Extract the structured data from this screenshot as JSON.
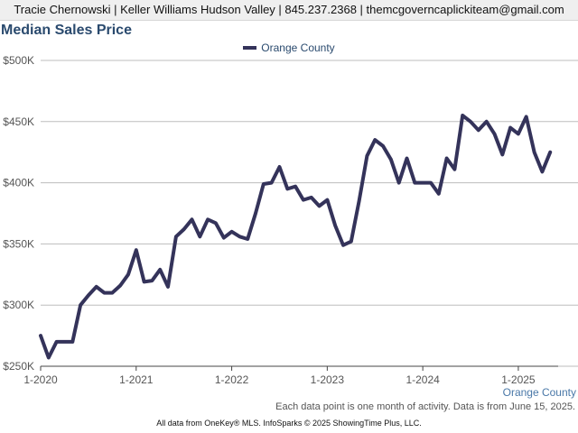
{
  "header": {
    "contact_line": "Tracie Chernowski | Keller Williams Hudson Valley | 845.237.2368 | themcgoverncaplickiteam@gmail.com"
  },
  "footer": {
    "note": "Each data point is one month of activity. Data is from June 15, 2025.",
    "credit": "All data from OneKey® MLS. InfoSparks © 2025 ShowingTime Plus, LLC."
  },
  "colors": {
    "line": "#34335a",
    "grid": "#bdbdbd",
    "title": "#2a4a6e",
    "axis_text": "#555555",
    "corner_label": "#4a78a8"
  },
  "chart_data": {
    "type": "line",
    "title": "Median Sales Price",
    "xlabel": "Orange County",
    "ylabel": "",
    "ylim": [
      250000,
      500000
    ],
    "ytick_values": [
      250000,
      300000,
      350000,
      400000,
      450000,
      500000
    ],
    "ytick_labels": [
      "$250K",
      "$300K",
      "$350K",
      "$400K",
      "$450K",
      "$500K"
    ],
    "xlim": [
      "2020-01",
      "2025-06"
    ],
    "xtick_values": [
      "2020-01",
      "2021-01",
      "2022-01",
      "2023-01",
      "2024-01",
      "2025-01"
    ],
    "xtick_labels": [
      "1-2020",
      "1-2021",
      "1-2022",
      "1-2023",
      "1-2024",
      "1-2025"
    ],
    "grid": true,
    "legend_position": "top-center",
    "series": [
      {
        "name": "Orange County",
        "x": [
          "2020-01",
          "2020-02",
          "2020-03",
          "2020-04",
          "2020-05",
          "2020-06",
          "2020-07",
          "2020-08",
          "2020-09",
          "2020-10",
          "2020-11",
          "2020-12",
          "2021-01",
          "2021-02",
          "2021-03",
          "2021-04",
          "2021-05",
          "2021-06",
          "2021-07",
          "2021-08",
          "2021-09",
          "2021-10",
          "2021-11",
          "2021-12",
          "2022-01",
          "2022-02",
          "2022-03",
          "2022-04",
          "2022-05",
          "2022-06",
          "2022-07",
          "2022-08",
          "2022-09",
          "2022-10",
          "2022-11",
          "2022-12",
          "2023-01",
          "2023-02",
          "2023-03",
          "2023-04",
          "2023-05",
          "2023-06",
          "2023-07",
          "2023-08",
          "2023-09",
          "2023-10",
          "2023-11",
          "2023-12",
          "2024-01",
          "2024-02",
          "2024-03",
          "2024-04",
          "2024-05",
          "2024-06",
          "2024-07",
          "2024-08",
          "2024-09",
          "2024-10",
          "2024-11",
          "2024-12",
          "2025-01",
          "2025-02",
          "2025-03",
          "2025-04",
          "2025-05"
        ],
        "values": [
          275000,
          257000,
          270000,
          270000,
          270000,
          300000,
          308000,
          315000,
          310000,
          310000,
          316000,
          325000,
          345000,
          319000,
          320000,
          329000,
          315000,
          356000,
          362000,
          370000,
          356000,
          370000,
          367000,
          355000,
          360000,
          356000,
          354000,
          375000,
          399000,
          400000,
          413000,
          395000,
          397000,
          386000,
          388000,
          381000,
          386000,
          365000,
          349000,
          352000,
          385000,
          422000,
          435000,
          430000,
          419000,
          400000,
          420000,
          400000,
          400000,
          400000,
          391000,
          420000,
          411000,
          455000,
          450000,
          443000,
          450000,
          440000,
          423000,
          445000,
          440000,
          454000,
          425000,
          409000,
          425000
        ]
      }
    ]
  }
}
